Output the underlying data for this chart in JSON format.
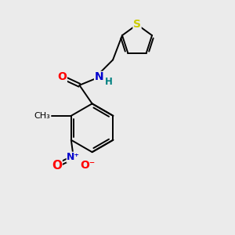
{
  "background_color": "#ebebeb",
  "atom_colors": {
    "O": "#ff0000",
    "N_amide": "#0000cd",
    "N_nitro": "#0000cd",
    "S": "#cccc00",
    "H": "#008080"
  },
  "lw": 1.4,
  "fig_size": [
    3.0,
    3.0
  ],
  "dpi": 100,
  "xlim": [
    0,
    10
  ],
  "ylim": [
    0,
    10
  ]
}
